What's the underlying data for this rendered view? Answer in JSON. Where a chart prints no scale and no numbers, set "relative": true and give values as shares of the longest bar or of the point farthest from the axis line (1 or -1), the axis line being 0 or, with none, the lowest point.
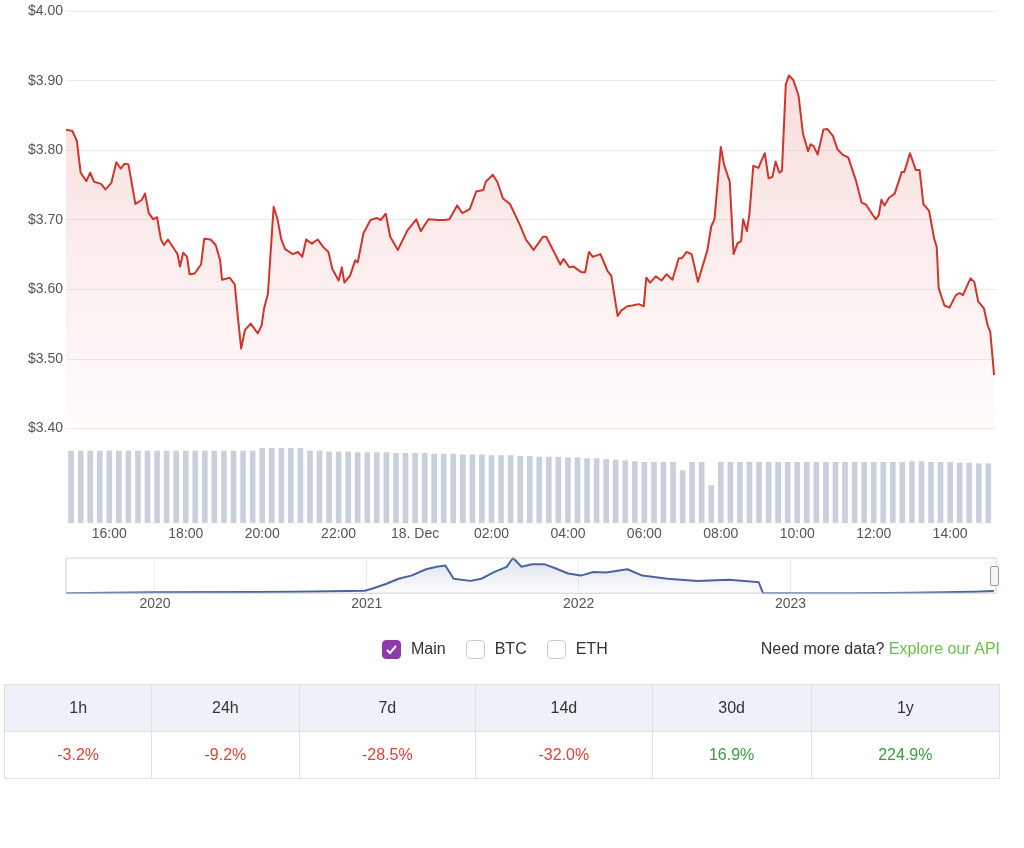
{
  "chart_data": [
    {
      "type": "area",
      "tick_labels": "y",
      "grid": "y",
      "marker": "none",
      "xlim": [
        "--12-17T14:52",
        "--12-18T15:12"
      ],
      "ylim": [
        3.4,
        4.0
      ],
      "yticks": [
        {
          "value": 3.4,
          "label": "$3.40"
        },
        {
          "value": 3.5,
          "label": "$3.50"
        },
        {
          "value": 3.6,
          "label": "$3.60"
        },
        {
          "value": 3.7,
          "label": "$3.70"
        },
        {
          "value": 3.8,
          "label": "$3.80"
        },
        {
          "value": 3.9,
          "label": "$3.90"
        },
        {
          "value": 4.0,
          "label": "$4.00"
        }
      ],
      "x": [
        "--12-17T14:52",
        "--12-17T15:02",
        "--12-17T15:09",
        "--12-17T15:15",
        "--12-17T15:24",
        "--12-17T15:30",
        "--12-17T15:36",
        "--12-17T15:47",
        "--12-17T15:54",
        "--12-17T16:03",
        "--12-17T16:11",
        "--12-17T16:18",
        "--12-17T16:24",
        "--12-17T16:30",
        "--12-17T16:41",
        "--12-17T16:51",
        "--12-17T16:56",
        "--12-17T17:02",
        "--12-17T17:09",
        "--12-17T17:15",
        "--12-17T17:21",
        "--12-17T17:26",
        "--12-17T17:32",
        "--12-17T17:47",
        "--12-17T17:51",
        "--12-17T17:56",
        "--12-17T18:02",
        "--12-17T18:06",
        "--12-17T18:14",
        "--12-17T18:24",
        "--12-17T18:29",
        "--12-17T18:39",
        "--12-17T18:47",
        "--12-17T18:54",
        "--12-17T18:57",
        "--12-17T19:09",
        "--12-17T19:17",
        "--12-17T19:21",
        "--12-17T19:27",
        "--12-17T19:33",
        "--12-17T19:42",
        "--12-17T19:53",
        "--12-17T19:59",
        "--12-17T20:03",
        "--12-17T20:09",
        "--12-17T20:18",
        "--12-17T20:24",
        "--12-17T20:30",
        "--12-17T20:36",
        "--12-17T20:48",
        "--12-17T20:56",
        "--12-17T21:03",
        "--12-17T21:09",
        "--12-17T21:18",
        "--12-17T21:27",
        "--12-17T21:36",
        "--12-17T21:44",
        "--12-17T21:50",
        "--12-17T22:00",
        "--12-17T22:05",
        "--12-17T22:09",
        "--12-17T22:18",
        "--12-17T22:26",
        "--12-17T22:30",
        "--12-17T22:39",
        "--12-17T22:50",
        "--12-17T23:00",
        "--12-17T23:06",
        "--12-17T23:14",
        "--12-17T23:21",
        "--12-17T23:33",
        "--12-17T23:48",
        "--12-18T00:02",
        "--12-18T00:09",
        "--12-18T00:21",
        "--12-18T00:36",
        "--12-18T00:47",
        "--12-18T00:54",
        "--12-18T01:06",
        "--12-18T01:14",
        "--12-18T01:21",
        "--12-18T01:26",
        "--12-18T01:36",
        "--12-18T01:47",
        "--12-18T01:51",
        "--12-18T02:02",
        "--12-18T02:09",
        "--12-18T02:18",
        "--12-18T02:29",
        "--12-18T02:44",
        "--12-18T02:54",
        "--12-18T03:06",
        "--12-18T03:21",
        "--12-18T03:26",
        "--12-18T03:36",
        "--12-18T03:48",
        "--12-18T03:53",
        "--12-18T04:02",
        "--12-18T04:09",
        "--12-18T04:21",
        "--12-18T04:27",
        "--12-18T04:33",
        "--12-18T04:39",
        "--12-18T04:51",
        "--12-18T05:02",
        "--12-18T05:08",
        "--12-18T05:18",
        "--12-18T05:24",
        "--12-18T05:33",
        "--12-18T05:41",
        "--12-18T05:51",
        "--12-18T05:59",
        "--12-18T06:03",
        "--12-18T06:09",
        "--12-18T06:18",
        "--12-18T06:27",
        "--12-18T06:35",
        "--12-18T06:44",
        "--12-18T06:54",
        "--12-18T06:59",
        "--12-18T07:06",
        "--12-18T07:14",
        "--12-18T07:18",
        "--12-18T07:24",
        "--12-18T07:39",
        "--12-18T07:45",
        "--12-18T07:50",
        "--12-18T08:00",
        "--12-18T08:05",
        "--12-18T08:14",
        "--12-18T08:20",
        "--12-18T08:26",
        "--12-18T08:32",
        "--12-18T08:35",
        "--12-18T08:41",
        "--12-18T08:45",
        "--12-18T08:51",
        "--12-18T08:59",
        "--12-18T09:09",
        "--12-18T09:15",
        "--12-18T09:21",
        "--12-18T09:26",
        "--12-18T09:32",
        "--12-18T09:36",
        "--12-18T09:42",
        "--12-18T09:47",
        "--12-18T09:54",
        "--12-18T10:02",
        "--12-18T10:09",
        "--12-18T10:17",
        "--12-18T10:21",
        "--12-18T10:26",
        "--12-18T10:32",
        "--12-18T10:41",
        "--12-18T10:47",
        "--12-18T10:56",
        "--12-18T11:03",
        "--12-18T11:11",
        "--12-18T11:20",
        "--12-18T11:32",
        "--12-18T11:41",
        "--12-18T11:48",
        "--12-18T12:03",
        "--12-18T12:08",
        "--12-18T12:12",
        "--12-18T12:17",
        "--12-18T12:24",
        "--12-18T12:33",
        "--12-18T12:44",
        "--12-18T12:48",
        "--12-18T12:57",
        "--12-18T13:06",
        "--12-18T13:12",
        "--12-18T13:18",
        "--12-18T13:27",
        "--12-18T13:35",
        "--12-18T13:39",
        "--12-18T13:42",
        "--12-18T13:51",
        "--12-18T13:59",
        "--12-18T14:09",
        "--12-18T14:15",
        "--12-18T14:20",
        "--12-18T14:32",
        "--12-18T14:38",
        "--12-18T14:44",
        "--12-18T14:53",
        "--12-18T14:59",
        "--12-18T15:03",
        "--12-18T15:09"
      ],
      "series": [
        {
          "color": "#d2342c",
          "values": [
            3.83,
            3.828,
            3.814,
            3.768,
            3.756,
            3.768,
            3.755,
            3.752,
            3.744,
            3.753,
            3.783,
            3.774,
            3.781,
            3.78,
            3.723,
            3.729,
            3.738,
            3.71,
            3.701,
            3.704,
            3.672,
            3.664,
            3.672,
            3.651,
            3.633,
            3.653,
            3.647,
            3.622,
            3.623,
            3.636,
            3.673,
            3.672,
            3.664,
            3.642,
            3.614,
            3.617,
            3.607,
            3.568,
            3.515,
            3.542,
            3.551,
            3.537,
            3.548,
            3.573,
            3.594,
            3.719,
            3.701,
            3.672,
            3.658,
            3.651,
            3.654,
            3.647,
            3.672,
            3.666,
            3.672,
            3.661,
            3.654,
            3.63,
            3.613,
            3.632,
            3.61,
            3.62,
            3.642,
            3.639,
            3.681,
            3.7,
            3.703,
            3.7,
            3.709,
            3.676,
            3.657,
            3.685,
            3.701,
            3.684,
            3.701,
            3.7,
            3.7,
            3.701,
            3.721,
            3.71,
            3.713,
            3.716,
            3.741,
            3.743,
            3.755,
            3.765,
            3.755,
            3.731,
            3.723,
            3.694,
            3.672,
            3.657,
            3.676,
            3.676,
            3.658,
            3.636,
            3.644,
            3.632,
            3.633,
            3.625,
            3.625,
            3.654,
            3.647,
            3.651,
            3.627,
            3.62,
            3.562,
            3.57,
            3.576,
            3.577,
            3.579,
            3.576,
            3.617,
            3.61,
            3.619,
            3.613,
            3.622,
            3.614,
            3.645,
            3.645,
            3.654,
            3.651,
            3.636,
            3.611,
            3.657,
            3.691,
            3.701,
            3.805,
            3.78,
            3.755,
            3.651,
            3.666,
            3.67,
            3.701,
            3.684,
            3.71,
            3.778,
            3.775,
            3.796,
            3.76,
            3.762,
            3.784,
            3.768,
            3.771,
            3.895,
            3.908,
            3.901,
            3.879,
            3.824,
            3.799,
            3.809,
            3.806,
            3.794,
            3.83,
            3.831,
            3.821,
            3.802,
            3.794,
            3.79,
            3.757,
            3.725,
            3.722,
            3.701,
            3.707,
            3.729,
            3.721,
            3.732,
            3.738,
            3.769,
            3.769,
            3.796,
            3.772,
            3.772,
            3.723,
            3.713,
            3.673,
            3.661,
            3.602,
            3.577,
            3.574,
            3.592,
            3.595,
            3.592,
            3.616,
            3.611,
            3.583,
            3.573,
            3.548,
            3.539,
            3.477
          ]
        }
      ]
    },
    {
      "type": "bar",
      "relative": true,
      "tick_labels": "x",
      "xlim": [
        "--12-17T14:52",
        "--12-18T15:12"
      ],
      "xticks": [
        {
          "value": "--12-17T16:00",
          "label": "16:00"
        },
        {
          "value": "--12-17T18:00",
          "label": "18:00"
        },
        {
          "value": "--12-17T20:00",
          "label": "20:00"
        },
        {
          "value": "--12-17T22:00",
          "label": "22:00"
        },
        {
          "value": "--12-18T00:00",
          "label": "18. Dec"
        },
        {
          "value": "--12-18T02:00",
          "label": "02:00"
        },
        {
          "value": "--12-18T04:00",
          "label": "04:00"
        },
        {
          "value": "--12-18T06:00",
          "label": "06:00"
        },
        {
          "value": "--12-18T08:00",
          "label": "08:00"
        },
        {
          "value": "--12-18T10:00",
          "label": "10:00"
        },
        {
          "value": "--12-18T12:00",
          "label": "12:00"
        },
        {
          "value": "--12-18T14:00",
          "label": "14:00"
        }
      ],
      "x": [
        "--12-17T15:00",
        "--12-17T15:15",
        "--12-17T15:30",
        "--12-17T15:45",
        "--12-17T16:00",
        "--12-17T16:15",
        "--12-17T16:30",
        "--12-17T16:45",
        "--12-17T17:00",
        "--12-17T17:15",
        "--12-17T17:30",
        "--12-17T17:45",
        "--12-17T18:00",
        "--12-17T18:15",
        "--12-17T18:30",
        "--12-17T18:45",
        "--12-17T19:00",
        "--12-17T19:15",
        "--12-17T19:30",
        "--12-17T19:45",
        "--12-17T20:00",
        "--12-17T20:15",
        "--12-17T20:30",
        "--12-17T20:45",
        "--12-17T21:00",
        "--12-17T21:15",
        "--12-17T21:30",
        "--12-17T21:45",
        "--12-17T22:00",
        "--12-17T22:15",
        "--12-17T22:30",
        "--12-17T22:45",
        "--12-17T23:00",
        "--12-17T23:15",
        "--12-17T23:30",
        "--12-17T23:45",
        "--12-18T00:00",
        "--12-18T00:15",
        "--12-18T00:30",
        "--12-18T00:45",
        "--12-18T01:00",
        "--12-18T01:15",
        "--12-18T01:30",
        "--12-18T01:45",
        "--12-18T02:00",
        "--12-18T02:15",
        "--12-18T02:30",
        "--12-18T02:45",
        "--12-18T03:00",
        "--12-18T03:15",
        "--12-18T03:30",
        "--12-18T03:45",
        "--12-18T04:00",
        "--12-18T04:15",
        "--12-18T04:30",
        "--12-18T04:45",
        "--12-18T05:00",
        "--12-18T05:15",
        "--12-18T05:30",
        "--12-18T05:45",
        "--12-18T06:00",
        "--12-18T06:15",
        "--12-18T06:30",
        "--12-18T06:45",
        "--12-18T07:00",
        "--12-18T07:15",
        "--12-18T07:30",
        "--12-18T07:45",
        "--12-18T08:00",
        "--12-18T08:15",
        "--12-18T08:30",
        "--12-18T08:45",
        "--12-18T09:00",
        "--12-18T09:15",
        "--12-18T09:30",
        "--12-18T09:45",
        "--12-18T10:00",
        "--12-18T10:15",
        "--12-18T10:30",
        "--12-18T10:45",
        "--12-18T11:00",
        "--12-18T11:15",
        "--12-18T11:30",
        "--12-18T11:45",
        "--12-18T12:00",
        "--12-18T12:15",
        "--12-18T12:30",
        "--12-18T12:45",
        "--12-18T13:00",
        "--12-18T13:15",
        "--12-18T13:30",
        "--12-18T13:45",
        "--12-18T14:00",
        "--12-18T14:15",
        "--12-18T14:30",
        "--12-18T14:45",
        "--12-18T15:00"
      ],
      "color": "#c8d0dc",
      "values": [
        0.96,
        0.96,
        0.96,
        0.96,
        0.96,
        0.96,
        0.96,
        0.96,
        0.96,
        0.96,
        0.96,
        0.96,
        0.96,
        0.96,
        0.96,
        0.96,
        0.96,
        0.96,
        0.96,
        0.96,
        1,
        1,
        1,
        1,
        1,
        0.96,
        0.96,
        0.95,
        0.95,
        0.95,
        0.94,
        0.94,
        0.94,
        0.94,
        0.93,
        0.93,
        0.93,
        0.93,
        0.92,
        0.92,
        0.92,
        0.91,
        0.91,
        0.91,
        0.9,
        0.9,
        0.9,
        0.89,
        0.89,
        0.88,
        0.88,
        0.88,
        0.87,
        0.87,
        0.86,
        0.86,
        0.85,
        0.84,
        0.83,
        0.82,
        0.81,
        0.81,
        0.81,
        0.81,
        0.7,
        0.81,
        0.81,
        0.5,
        0.81,
        0.81,
        0.81,
        0.81,
        0.81,
        0.81,
        0.81,
        0.81,
        0.81,
        0.81,
        0.81,
        0.81,
        0.81,
        0.81,
        0.81,
        0.81,
        0.81,
        0.81,
        0.81,
        0.81,
        0.82,
        0.82,
        0.81,
        0.81,
        0.81,
        0.8,
        0.8,
        0.79,
        0.79
      ]
    },
    {
      "type": "area",
      "relative": true,
      "grid": "x",
      "marker": "none",
      "xlim": [
        2019.58,
        2023.97
      ],
      "xticks": [
        2020,
        2021,
        2022,
        2023
      ],
      "x": [
        2019.58,
        2020.0,
        2020.67,
        2020.99,
        2021.02,
        2021.09,
        2021.15,
        2021.21,
        2021.28,
        2021.33,
        2021.37,
        2021.41,
        2021.49,
        2021.54,
        2021.6,
        2021.66,
        2021.69,
        2021.73,
        2021.78,
        2021.84,
        2021.89,
        2021.95,
        2022.01,
        2022.07,
        2022.13,
        2022.23,
        2022.3,
        2022.42,
        2022.56,
        2022.71,
        2022.84,
        2022.85,
        2022.87,
        2023.29,
        2023.58,
        2023.87,
        2023.96
      ],
      "series": [
        {
          "color": "#4a64a0",
          "values": [
            0,
            0.03,
            0.04,
            0.07,
            0.12,
            0.26,
            0.41,
            0.5,
            0.68,
            0.75,
            0.79,
            0.41,
            0.35,
            0.41,
            0.6,
            0.75,
            1,
            0.75,
            0.82,
            0.82,
            0.71,
            0.56,
            0.5,
            0.6,
            0.59,
            0.68,
            0.5,
            0.41,
            0.35,
            0.38,
            0.32,
            0.31,
            0,
            0,
            0.01,
            0.04,
            0.06
          ]
        }
      ]
    },
    {
      "type": "other",
      "annotations": [
        "Main",
        "BTC",
        "ETH",
        "Need more data?",
        "Explore our API"
      ],
      "categories": [
        "1h",
        "24h",
        "7d",
        "14d",
        "30d",
        "1y"
      ],
      "values": [
        -3.2,
        -9.2,
        -28.5,
        -32.0,
        16.9,
        224.9
      ],
      "value_labels": [
        "-3.2%",
        "-9.2%",
        "-28.5%",
        "-32.0%",
        "16.9%",
        "224.9%"
      ]
    }
  ]
}
